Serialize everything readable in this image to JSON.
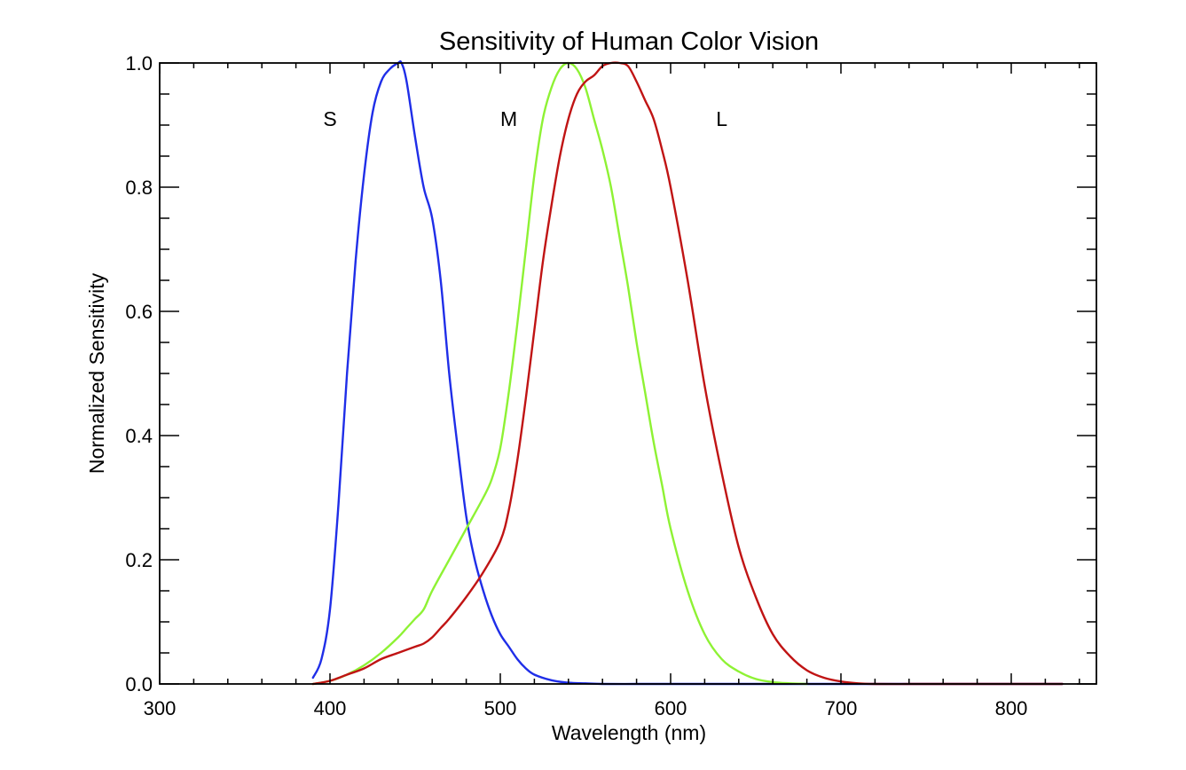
{
  "chart_data": {
    "type": "line",
    "title": "Sensitivity of Human Color Vision",
    "xlabel": "Wavelength (nm)",
    "ylabel": "Normalized Sensitivity",
    "xlim": [
      300,
      850
    ],
    "ylim": [
      0,
      1
    ],
    "x_ticks": [
      300,
      400,
      500,
      600,
      700,
      800
    ],
    "y_ticks": [
      0.0,
      0.2,
      0.4,
      0.6,
      0.8,
      1.0
    ],
    "x_tick_labels": [
      "300",
      "400",
      "500",
      "600",
      "700",
      "800"
    ],
    "y_tick_labels": [
      "0.0",
      "0.2",
      "0.4",
      "0.6",
      "0.8",
      "1.0"
    ],
    "grid": false,
    "annotations": [
      {
        "text": "S",
        "x": 400,
        "y": 0.91
      },
      {
        "text": "M",
        "x": 505,
        "y": 0.91
      },
      {
        "text": "L",
        "x": 630,
        "y": 0.91
      }
    ],
    "series": [
      {
        "color": "#1f2ee8",
        "x": [
          390,
          395,
          400,
          405,
          410,
          415,
          420,
          425,
          430,
          435,
          440,
          442,
          445,
          450,
          455,
          460,
          465,
          470,
          475,
          480,
          485,
          490,
          495,
          500,
          505,
          510,
          515,
          520,
          530,
          540,
          550,
          560,
          580,
          600,
          650,
          700,
          750,
          800,
          830
        ],
        "y": [
          0.01,
          0.04,
          0.12,
          0.29,
          0.5,
          0.68,
          0.82,
          0.92,
          0.97,
          0.99,
          1.0,
          1.0,
          0.97,
          0.88,
          0.8,
          0.75,
          0.65,
          0.5,
          0.38,
          0.27,
          0.2,
          0.15,
          0.11,
          0.08,
          0.06,
          0.04,
          0.025,
          0.015,
          0.006,
          0.002,
          0.001,
          0.0,
          0.0,
          0.0,
          0.0,
          0.0,
          0.0,
          0.0,
          0.0
        ]
      },
      {
        "color": "#8ef234",
        "x": [
          390,
          400,
          410,
          420,
          430,
          440,
          445,
          450,
          455,
          460,
          470,
          480,
          490,
          495,
          500,
          505,
          510,
          515,
          520,
          525,
          530,
          535,
          540,
          545,
          550,
          555,
          560,
          565,
          570,
          575,
          580,
          585,
          590,
          595,
          600,
          610,
          620,
          630,
          640,
          650,
          660,
          670,
          680
        ],
        "y": [
          0.0,
          0.005,
          0.015,
          0.03,
          0.05,
          0.075,
          0.09,
          0.105,
          0.12,
          0.15,
          0.2,
          0.25,
          0.3,
          0.33,
          0.38,
          0.47,
          0.58,
          0.7,
          0.82,
          0.91,
          0.96,
          0.99,
          1.0,
          0.99,
          0.96,
          0.91,
          0.86,
          0.8,
          0.72,
          0.64,
          0.55,
          0.47,
          0.39,
          0.32,
          0.25,
          0.15,
          0.08,
          0.04,
          0.02,
          0.008,
          0.003,
          0.001,
          0.0
        ]
      },
      {
        "color": "#c01414",
        "x": [
          390,
          400,
          410,
          420,
          430,
          440,
          450,
          455,
          460,
          465,
          470,
          480,
          490,
          500,
          505,
          510,
          515,
          520,
          525,
          530,
          535,
          540,
          545,
          550,
          555,
          560,
          565,
          570,
          575,
          580,
          585,
          590,
          595,
          600,
          610,
          620,
          630,
          640,
          650,
          660,
          670,
          680,
          690,
          700,
          710,
          720,
          740,
          760,
          800,
          830
        ],
        "y": [
          0.0,
          0.005,
          0.015,
          0.025,
          0.04,
          0.05,
          0.06,
          0.065,
          0.075,
          0.09,
          0.105,
          0.14,
          0.18,
          0.23,
          0.28,
          0.36,
          0.46,
          0.57,
          0.68,
          0.77,
          0.85,
          0.91,
          0.95,
          0.97,
          0.98,
          0.995,
          1.0,
          1.0,
          0.995,
          0.97,
          0.94,
          0.91,
          0.86,
          0.8,
          0.65,
          0.48,
          0.34,
          0.22,
          0.14,
          0.08,
          0.045,
          0.022,
          0.01,
          0.004,
          0.001,
          0.0,
          0.0,
          0.0,
          0.0,
          0.0
        ]
      }
    ]
  }
}
